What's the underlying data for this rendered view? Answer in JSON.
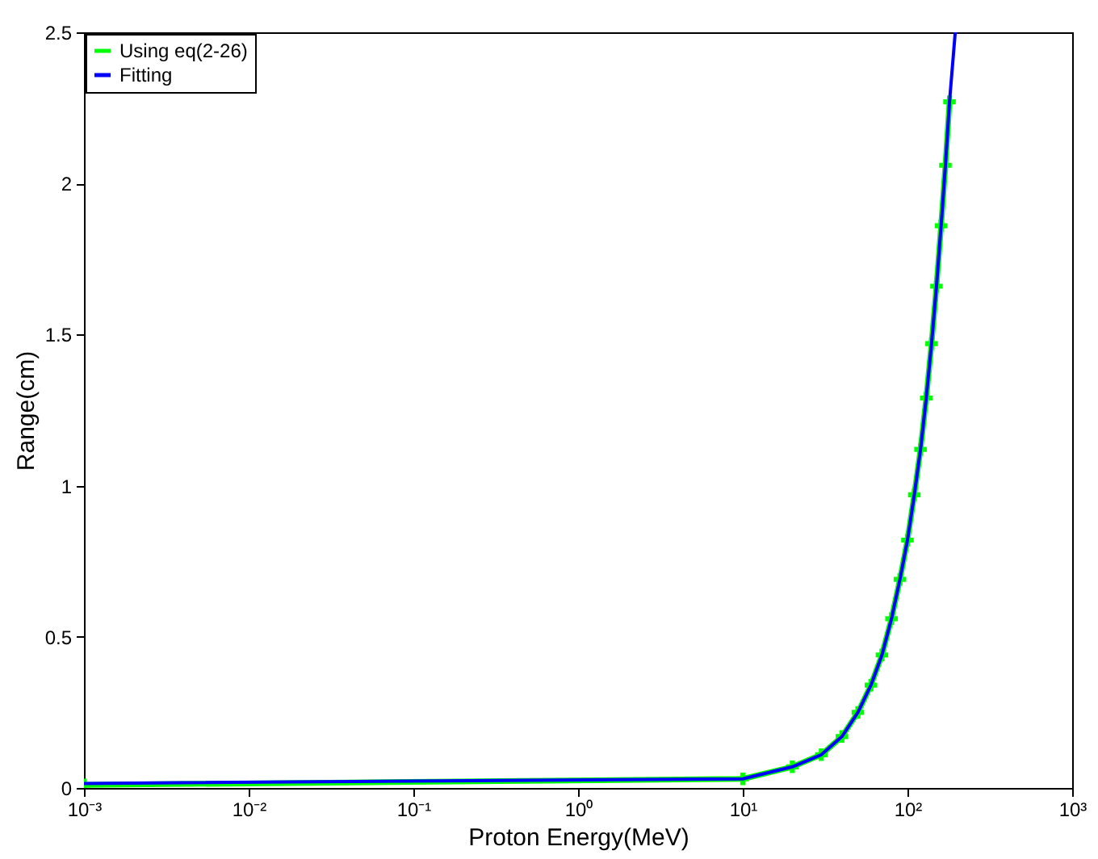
{
  "chart_data": {
    "type": "line",
    "xlabel": "Proton Energy(MeV)",
    "ylabel": "Range(cm)",
    "log": "x",
    "xlim": [
      0.001,
      1000
    ],
    "ylim": [
      0,
      2.5
    ],
    "xticks": [
      {
        "value": 0.001,
        "label": "10⁻³"
      },
      {
        "value": 0.01,
        "label": "10⁻²"
      },
      {
        "value": 0.1,
        "label": "10⁻¹"
      },
      {
        "value": 1,
        "label": "10⁰"
      },
      {
        "value": 10,
        "label": "10¹"
      },
      {
        "value": 100,
        "label": "10²"
      },
      {
        "value": 1000,
        "label": "10³"
      }
    ],
    "yticks": [
      0,
      0.5,
      1,
      1.5,
      2,
      2.5
    ],
    "legend": "top left",
    "series": [
      {
        "name": "Using eq(2-26)",
        "color": "#00ff00",
        "marker": "cross",
        "x": [
          0.001,
          10,
          20,
          30,
          40,
          50,
          60,
          70,
          80,
          90,
          100,
          110,
          120,
          130,
          140,
          150,
          160,
          170,
          180
        ],
        "values": [
          0.01,
          0.03,
          0.07,
          0.11,
          0.17,
          0.25,
          0.34,
          0.44,
          0.56,
          0.69,
          0.82,
          0.97,
          1.12,
          1.29,
          1.47,
          1.66,
          1.86,
          2.06,
          2.27
        ]
      },
      {
        "name": "Fitting",
        "color": "#0000ff",
        "marker": "none",
        "x": [
          0.001,
          10,
          20,
          30,
          40,
          50,
          60,
          70,
          80,
          90,
          100,
          110,
          120,
          130,
          140,
          150,
          160,
          170,
          180,
          195
        ],
        "values": [
          0.015,
          0.03,
          0.07,
          0.11,
          0.17,
          0.25,
          0.34,
          0.44,
          0.56,
          0.69,
          0.82,
          0.97,
          1.12,
          1.29,
          1.47,
          1.66,
          1.86,
          2.06,
          2.27,
          2.5
        ]
      }
    ]
  }
}
